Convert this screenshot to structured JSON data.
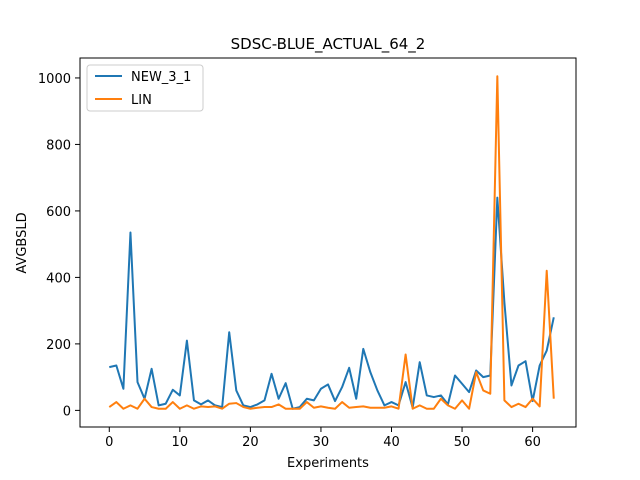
{
  "chart_data": {
    "type": "line",
    "title": "SDSC-BLUE_ACTUAL_64_2",
    "xlabel": "Experiments",
    "ylabel": "AVGBSLD",
    "xlim": [
      -4.15,
      66.15
    ],
    "ylim": [
      -50,
      1060
    ],
    "xticks": [
      0,
      10,
      20,
      30,
      40,
      50,
      60
    ],
    "yticks": [
      0,
      200,
      400,
      600,
      800,
      1000
    ],
    "grid": false,
    "legend_position": "top-left",
    "x": [
      0,
      1,
      2,
      3,
      4,
      5,
      6,
      7,
      8,
      9,
      10,
      11,
      12,
      13,
      14,
      15,
      16,
      17,
      18,
      19,
      20,
      21,
      22,
      23,
      24,
      25,
      26,
      27,
      28,
      29,
      30,
      31,
      32,
      33,
      34,
      35,
      36,
      37,
      38,
      39,
      40,
      41,
      42,
      43,
      44,
      45,
      46,
      47,
      48,
      49,
      50,
      51,
      52,
      53,
      54,
      55,
      56,
      57,
      58,
      59,
      60,
      61,
      62,
      63
    ],
    "series": [
      {
        "name": "NEW_3_1",
        "color": "#1f77b4",
        "values": [
          130,
          135,
          65,
          535,
          85,
          35,
          125,
          15,
          20,
          62,
          45,
          210,
          30,
          18,
          30,
          15,
          10,
          235,
          60,
          15,
          10,
          18,
          30,
          110,
          35,
          82,
          5,
          10,
          35,
          30,
          65,
          78,
          28,
          70,
          128,
          35,
          185,
          115,
          60,
          15,
          25,
          15,
          85,
          8,
          145,
          45,
          40,
          45,
          18,
          105,
          80,
          55,
          120,
          100,
          105,
          640,
          325,
          75,
          135,
          148,
          28,
          135,
          180,
          280
        ]
      },
      {
        "name": "LIN",
        "color": "#ff7f0e",
        "values": [
          10,
          25,
          5,
          15,
          5,
          35,
          10,
          5,
          5,
          25,
          5,
          15,
          5,
          12,
          10,
          12,
          5,
          20,
          22,
          10,
          5,
          8,
          10,
          10,
          18,
          5,
          5,
          5,
          25,
          8,
          12,
          8,
          5,
          25,
          8,
          10,
          12,
          8,
          8,
          8,
          12,
          5,
          168,
          5,
          15,
          5,
          5,
          35,
          15,
          5,
          30,
          5,
          115,
          60,
          50,
          1005,
          30,
          10,
          20,
          10,
          35,
          12,
          420,
          35
        ]
      }
    ]
  }
}
